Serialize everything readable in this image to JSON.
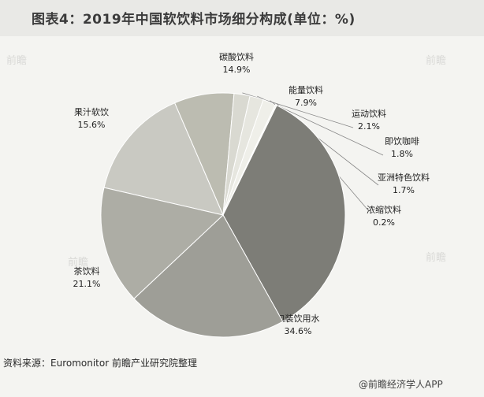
{
  "title": "图表4：2019年中国软饮料市场细分构成(单位：%)",
  "source": "资料来源：Euromonitor 前瞻产业研究院整理",
  "credit": "@前瞻经济学人APP",
  "watermark": "前瞻",
  "chart_data": {
    "type": "pie",
    "unit": "%",
    "slices": [
      {
        "name": "碳酸饮料",
        "value": 14.9,
        "display": "14.9%",
        "color": "#c9c9c2"
      },
      {
        "name": "能量饮料",
        "value": 7.9,
        "display": "7.9%",
        "color": "#bcbcb1"
      },
      {
        "name": "运动饮料",
        "value": 2.1,
        "display": "2.1%",
        "color": "#d9d9d1"
      },
      {
        "name": "即饮咖啡",
        "value": 1.8,
        "display": "1.8%",
        "color": "#e6e6df"
      },
      {
        "name": "亚洲特色饮料",
        "value": 1.7,
        "display": "1.7%",
        "color": "#efefe9"
      },
      {
        "name": "浓缩饮料",
        "value": 0.2,
        "display": "0.2%",
        "color": "#f5f5f0"
      },
      {
        "name": "包装饮用水",
        "value": 34.6,
        "display": "34.6%",
        "color": "#7d7d77"
      },
      {
        "name": "茶饮料",
        "value": 21.1,
        "display": "21.1%",
        "color": "#9e9e97"
      },
      {
        "name": "果汁软饮",
        "value": 15.6,
        "display": "15.6%",
        "color": "#adada5"
      }
    ]
  }
}
